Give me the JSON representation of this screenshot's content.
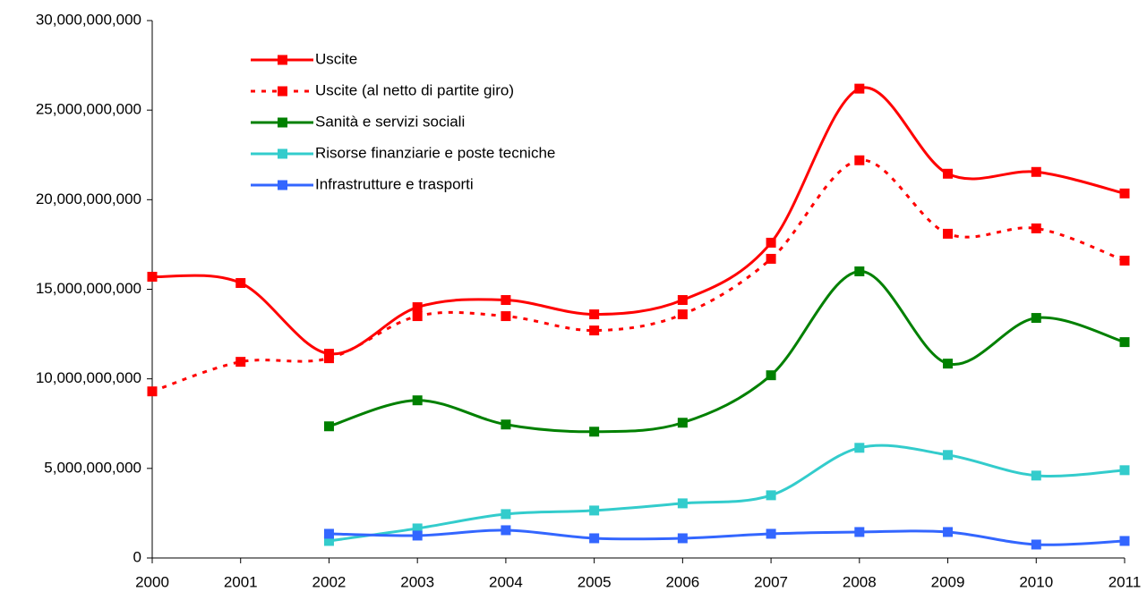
{
  "chart_data": {
    "type": "line",
    "x": [
      2000,
      2001,
      2002,
      2003,
      2004,
      2005,
      2006,
      2007,
      2008,
      2009,
      2010,
      2011
    ],
    "xlim": [
      2000,
      2011
    ],
    "xticks": [
      2000,
      2001,
      2002,
      2003,
      2004,
      2005,
      2006,
      2007,
      2008,
      2009,
      2010,
      2011
    ],
    "ylim": [
      0,
      30000000000
    ],
    "yticks": [
      0,
      {
        "value": 5000000000,
        "label": "5,000,000,000"
      },
      {
        "value": 10000000000,
        "label": "10,000,000,000"
      },
      {
        "value": 15000000000,
        "label": "15,000,000,000"
      },
      {
        "value": 20000000000,
        "label": "20,000,000,000"
      },
      {
        "value": 25000000000,
        "label": "25,000,000,000"
      },
      {
        "value": 30000000000,
        "label": "30,000,000,000"
      }
    ],
    "legend": "upper left",
    "series": [
      {
        "name": "Uscite",
        "color": "#ff0000",
        "dashed": false,
        "values": [
          15700000000,
          15350000000,
          11400000000,
          14000000000,
          14400000000,
          13600000000,
          14400000000,
          17600000000,
          26200000000,
          21450000000,
          21550000000,
          20350000000
        ]
      },
      {
        "name": "Uscite (al netto di partite giro)",
        "color": "#ff0000",
        "dashed": true,
        "values": [
          9300000000,
          10950000000,
          11150000000,
          13500000000,
          13500000000,
          12700000000,
          13600000000,
          16700000000,
          22200000000,
          18100000000,
          18400000000,
          16600000000
        ]
      },
      {
        "name": "Sanità e servizi sociali",
        "color": "#008000",
        "dashed": false,
        "values": [
          null,
          null,
          7350000000,
          8800000000,
          7450000000,
          7050000000,
          7550000000,
          10200000000,
          16000000000,
          10850000000,
          13400000000,
          12050000000
        ]
      },
      {
        "name": "Risorse finanziarie e poste tecniche",
        "color": "#33cccc",
        "dashed": false,
        "values": [
          null,
          null,
          950000000,
          1650000000,
          2450000000,
          2650000000,
          3050000000,
          3500000000,
          6150000000,
          5750000000,
          4600000000,
          4900000000
        ]
      },
      {
        "name": "Infrastrutture e trasporti",
        "color": "#3366ff",
        "dashed": false,
        "values": [
          null,
          null,
          1350000000,
          1250000000,
          1550000000,
          1100000000,
          1100000000,
          1350000000,
          1450000000,
          1450000000,
          750000000,
          950000000
        ]
      }
    ]
  }
}
